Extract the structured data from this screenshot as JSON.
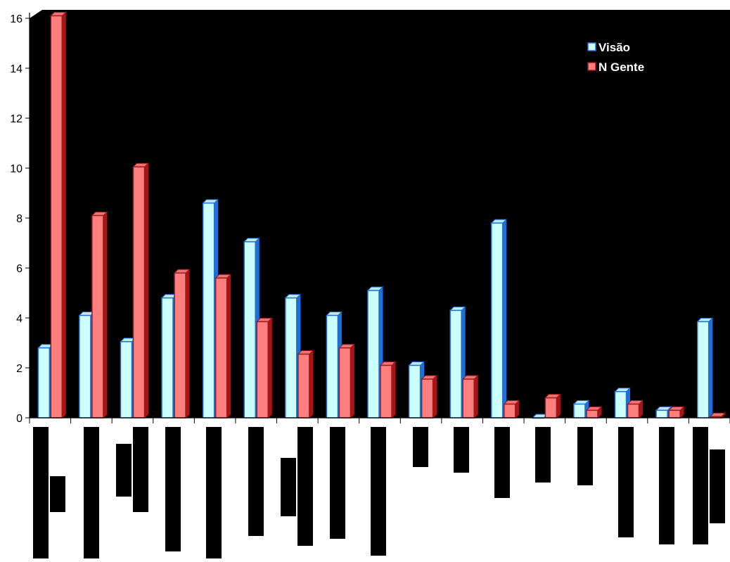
{
  "chart_data": {
    "type": "bar",
    "title": "",
    "xlabel": "",
    "ylabel": "",
    "ylim": [
      0,
      16
    ],
    "yticks": [
      0,
      2,
      4,
      6,
      8,
      10,
      12,
      14,
      16
    ],
    "grid": false,
    "legend_position": "top-right",
    "background": "#000000",
    "category_count": 17,
    "series": [
      {
        "name": "Visão",
        "color": "#ccffff",
        "edge_color": "#1f6fd6",
        "values": [
          2.8,
          4.1,
          3.05,
          4.8,
          8.6,
          7.05,
          4.8,
          4.1,
          5.1,
          2.1,
          4.3,
          7.8,
          0,
          0.55,
          1.05,
          0.3,
          3.85
        ]
      },
      {
        "name": "N Gente",
        "color": "#ff7f7f",
        "edge_color": "#a01818",
        "values": [
          16.1,
          8.1,
          10.05,
          5.8,
          5.6,
          3.85,
          2.55,
          2.8,
          2.1,
          1.55,
          1.55,
          0.55,
          0.8,
          0.3,
          0.55,
          0.3,
          0.05
        ]
      }
    ]
  }
}
